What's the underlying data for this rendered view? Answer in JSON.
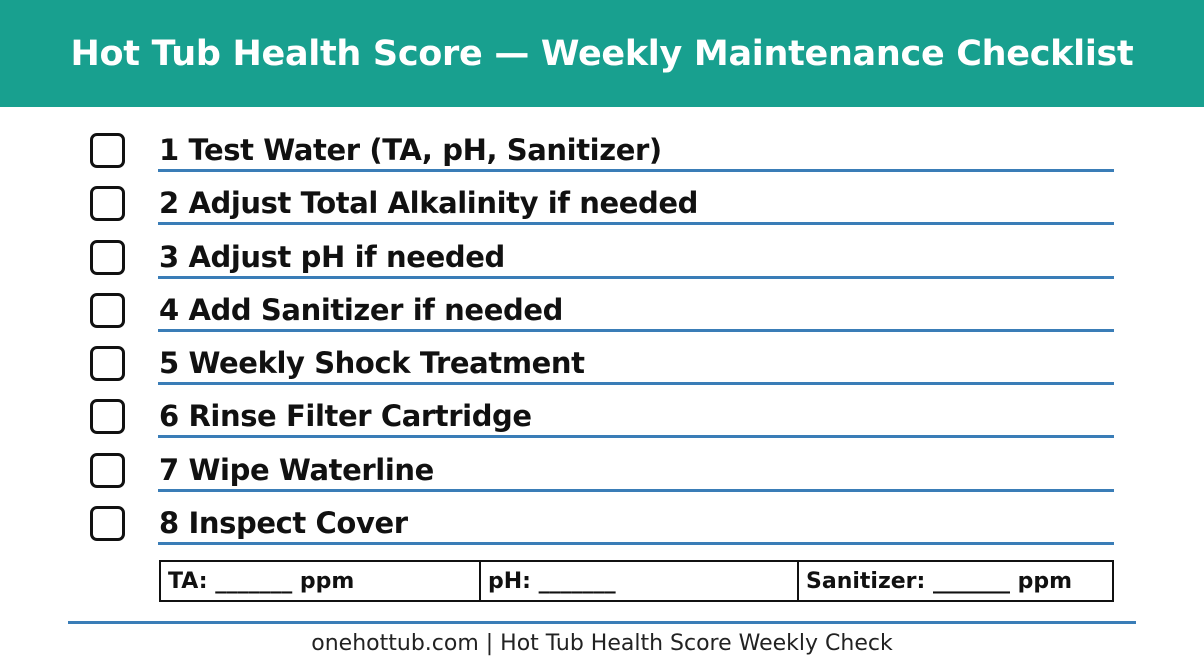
{
  "header": {
    "title": "Hot Tub Health Score — Weekly Maintenance Checklist",
    "background_color": "#18a08f"
  },
  "checklist": {
    "items": [
      {
        "label": "1 Test Water (TA, pH, Sanitizer)",
        "checked": false
      },
      {
        "label": "2 Adjust Total Alkalinity if needed",
        "checked": false
      },
      {
        "label": "3 Adjust pH if needed",
        "checked": false
      },
      {
        "label": "4 Add Sanitizer if needed",
        "checked": false
      },
      {
        "label": "5 Weekly Shock Treatment",
        "checked": false
      },
      {
        "label": "6 Rinse Filter Cartridge",
        "checked": false
      },
      {
        "label": "7 Wipe Waterline",
        "checked": false
      },
      {
        "label": "8 Inspect Cover",
        "checked": false
      }
    ],
    "rule_color": "#3a7db7"
  },
  "readings": {
    "ta": "TA: _______ ppm",
    "ph": "pH: _______",
    "sanitizer": "Sanitizer: _______ ppm"
  },
  "footer": {
    "text": "onehottub.com | Hot Tub Health Score Weekly Check"
  }
}
